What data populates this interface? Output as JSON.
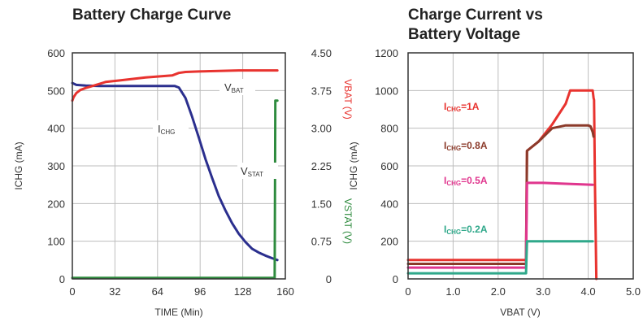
{
  "chart_data": [
    {
      "type": "line",
      "title": "Battery Charge Curve",
      "xlabel": "TIME (Min)",
      "ylabel": "ICHG (mA)",
      "ylabel_right": "VBAT (V)",
      "ylabel_right2": "VSTAT (V)",
      "xlim": [
        0,
        160
      ],
      "ylim": [
        0,
        600
      ],
      "ylim_right": [
        0,
        4.5
      ],
      "x_ticks": [
        "0",
        "32",
        "64",
        "96",
        "128",
        "160"
      ],
      "y_ticks": [
        "0",
        "100",
        "200",
        "300",
        "400",
        "500",
        "600"
      ],
      "y_right_ticks": [
        "0",
        "0.75",
        "1.50",
        "2.25",
        "3.00",
        "3.75",
        "4.50"
      ],
      "grid": true,
      "annotations": [
        {
          "main": "V",
          "sub": "BAT"
        },
        {
          "main": "I",
          "sub": "CHG"
        },
        {
          "main": "V",
          "sub": "STAT"
        }
      ],
      "series": [
        {
          "name": "ICHG",
          "axis": "left",
          "color": "#2b2f8e",
          "x": [
            0,
            3,
            10,
            20,
            40,
            60,
            70,
            77,
            80,
            85,
            90,
            95,
            100,
            105,
            110,
            115,
            120,
            125,
            130,
            135,
            140,
            145,
            150,
            154
          ],
          "y": [
            520,
            515,
            513,
            512,
            512,
            512,
            512,
            512,
            508,
            480,
            430,
            375,
            318,
            268,
            220,
            182,
            148,
            120,
            98,
            80,
            70,
            62,
            55,
            50
          ]
        },
        {
          "name": "VBAT",
          "axis": "right",
          "color": "#e8332f",
          "x": [
            0,
            1,
            3,
            6,
            10,
            15,
            20,
            25,
            35,
            45,
            55,
            65,
            75,
            80,
            85,
            95,
            110,
            125,
            140,
            150,
            154
          ],
          "y": [
            3.55,
            3.62,
            3.7,
            3.76,
            3.8,
            3.84,
            3.88,
            3.92,
            3.95,
            3.98,
            4.01,
            4.03,
            4.05,
            4.1,
            4.12,
            4.13,
            4.14,
            4.15,
            4.15,
            4.15,
            4.15
          ]
        },
        {
          "name": "VSTAT",
          "axis": "right",
          "color": "#2e8b3e",
          "x": [
            0,
            40,
            80,
            120,
            152,
            152.5,
            153,
            154
          ],
          "y": [
            0.02,
            0.02,
            0.02,
            0.02,
            0.02,
            3.55,
            3.55,
            3.55
          ]
        }
      ]
    },
    {
      "type": "line",
      "title_line1": "Charge Current vs",
      "title_line2": "Battery Voltage",
      "xlabel": "VBAT (V)",
      "ylabel": "ICHG (mA)",
      "xlim": [
        0,
        5.0
      ],
      "ylim": [
        0,
        1200
      ],
      "x_ticks": [
        "0",
        "1.0",
        "2.0",
        "3.0",
        "4.0",
        "5.0"
      ],
      "y_ticks": [
        "0",
        "200",
        "400",
        "600",
        "800",
        "1000",
        "1200"
      ],
      "grid": true,
      "series": [
        {
          "name": "ICHG=1A",
          "label_main": "I",
          "label_sub": "CHG",
          "label_value": "=1A",
          "color": "#e8332f",
          "x": [
            0,
            2.6,
            2.62,
            2.64,
            2.9,
            3.2,
            3.5,
            3.6,
            3.7,
            4.0,
            4.1,
            4.12,
            4.13,
            4.15,
            4.18
          ],
          "y": [
            100,
            100,
            100,
            680,
            730,
            820,
            930,
            1000,
            1000,
            1000,
            1000,
            960,
            950,
            500,
            0
          ]
        },
        {
          "name": "ICHG=0.8A",
          "label_main": "I",
          "label_sub": "CHG",
          "label_value": "=0.8A",
          "color": "#8b3a2a",
          "x": [
            0,
            2.6,
            2.62,
            2.64,
            2.9,
            3.2,
            3.5,
            4.0,
            4.05,
            4.1,
            4.12
          ],
          "y": [
            80,
            80,
            80,
            680,
            730,
            800,
            815,
            815,
            810,
            780,
            755
          ]
        },
        {
          "name": "ICHG=0.5A",
          "label_main": "I",
          "label_sub": "CHG",
          "label_value": "=0.5A",
          "color": "#e0368e",
          "x": [
            0,
            2.6,
            2.62,
            2.64,
            3.0,
            3.5,
            4.1
          ],
          "y": [
            60,
            60,
            60,
            510,
            510,
            505,
            500
          ]
        },
        {
          "name": "ICHG=0.2A",
          "label_main": "I",
          "label_sub": "CHG",
          "label_value": "=0.2A",
          "color": "#2fa88a",
          "x": [
            0,
            2.6,
            2.62,
            2.64,
            3.5,
            4.1
          ],
          "y": [
            30,
            30,
            30,
            200,
            200,
            200
          ]
        }
      ]
    }
  ]
}
